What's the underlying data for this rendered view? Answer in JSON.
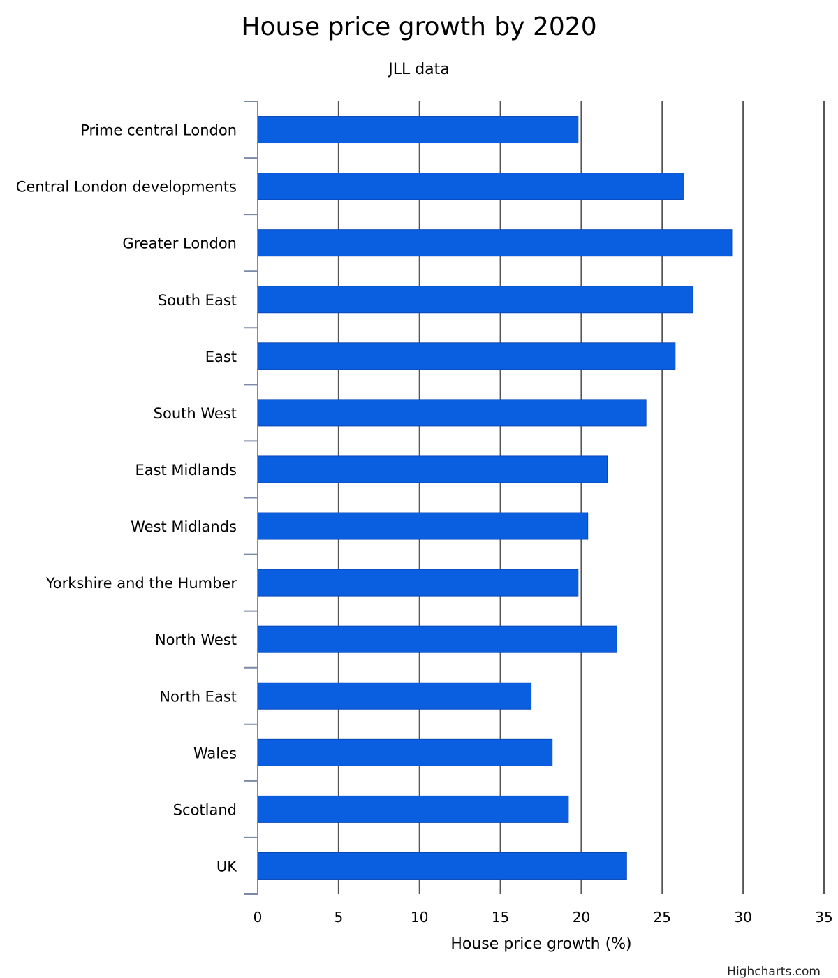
{
  "chart_data": {
    "type": "bar",
    "orientation": "horizontal",
    "title": "House price growth by 2020",
    "subtitle": "JLL data",
    "xlabel": "House price growth (%)",
    "ylabel": "",
    "xlim": [
      0,
      35
    ],
    "ticks": [
      "0",
      "5",
      "10",
      "15",
      "20",
      "25",
      "30",
      "35"
    ],
    "grid": true,
    "categories": [
      "Prime central London",
      "Central London developments",
      "Greater London",
      "South East",
      "East",
      "South West",
      "East Midlands",
      "West Midlands",
      "Yorkshire and the Humber",
      "North West",
      "North East",
      "Wales",
      "Scotland",
      "UK"
    ],
    "series": [
      {
        "values": [
          19.8,
          26.3,
          29.3,
          26.9,
          25.8,
          24.0,
          21.6,
          20.4,
          19.8,
          22.2,
          16.9,
          18.2,
          19.2,
          22.8
        ]
      }
    ],
    "bar_color": "#0a5ee0",
    "credit": "Highcharts.com"
  }
}
